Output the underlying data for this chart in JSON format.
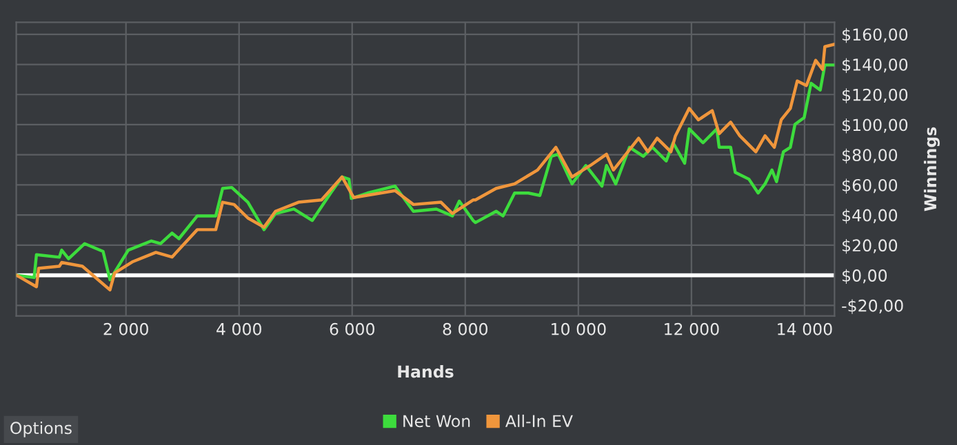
{
  "chart_data": {
    "type": "line",
    "xlabel": "Hands",
    "ylabel": "Winnings",
    "xlim": [
      60,
      14530
    ],
    "ylim": [
      -27,
      168
    ],
    "xticks": [
      {
        "value": 2000,
        "label": "2 000"
      },
      {
        "value": 4000,
        "label": "4 000"
      },
      {
        "value": 6000,
        "label": "6 000"
      },
      {
        "value": 8000,
        "label": "8 000"
      },
      {
        "value": 10000,
        "label": "10 000"
      },
      {
        "value": 12000,
        "label": "12 000"
      },
      {
        "value": 14000,
        "label": "14 000"
      }
    ],
    "yticks": [
      {
        "value": -20,
        "label": "-$20,00"
      },
      {
        "value": 0,
        "label": "$0,00"
      },
      {
        "value": 20,
        "label": "$20,00"
      },
      {
        "value": 40,
        "label": "$40,00"
      },
      {
        "value": 60,
        "label": "$60,00"
      },
      {
        "value": 80,
        "label": "$80,00"
      },
      {
        "value": 100,
        "label": "$100,00"
      },
      {
        "value": 120,
        "label": "$120,00"
      },
      {
        "value": 140,
        "label": "$140,00"
      },
      {
        "value": 160,
        "label": "$160,00"
      }
    ],
    "grid": true,
    "legend": "bottom",
    "ref_lines": [
      {
        "axis": "y",
        "value": 0,
        "color": "#ffffff"
      }
    ],
    "annotations": [
      "Options"
    ],
    "series": [
      {
        "name": "Net Won",
        "color": "#3ddc3d",
        "x": [
          66,
          376,
          417,
          822,
          863,
          985,
          1270,
          1595,
          1717,
          2041,
          2449,
          2612,
          2815,
          2937,
          3261,
          3588,
          3709,
          3871,
          4156,
          4441,
          4644,
          4969,
          5295,
          5620,
          5822,
          5944,
          5985,
          6271,
          6759,
          7083,
          7490,
          7773,
          7895,
          8139,
          8180,
          8546,
          8668,
          8873,
          9115,
          9320,
          9522,
          9644,
          9888,
          10132,
          10417,
          10498,
          10661,
          10905,
          11149,
          11310,
          11554,
          11676,
          11880,
          11961,
          12205,
          12449,
          12490,
          12693,
          12775,
          13017,
          13180,
          13302,
          13424,
          13505,
          13627,
          13749,
          13831,
          13993,
          14115,
          14278,
          14359,
          14522
        ],
        "values": [
          0,
          -1.5,
          13.7,
          12,
          16.7,
          11,
          21,
          15.8,
          -3,
          16.7,
          22.8,
          21,
          28,
          24.3,
          39.4,
          39.4,
          57.7,
          58.3,
          48.5,
          30.3,
          41,
          44,
          36.4,
          54.6,
          65.3,
          63.8,
          51,
          54.6,
          59.2,
          42.5,
          44,
          39.4,
          49.2,
          36.4,
          35,
          42.5,
          39.4,
          54.6,
          54.6,
          53,
          79,
          80.4,
          60.7,
          72.9,
          59.2,
          72.9,
          60.7,
          85,
          79,
          85,
          75.9,
          88,
          74.4,
          97.2,
          88,
          97.2,
          85,
          85,
          68.3,
          63.8,
          54.6,
          60.7,
          69.9,
          62.2,
          82,
          85,
          100.2,
          104.7,
          127.5,
          123,
          139.6,
          139.6
        ]
      },
      {
        "name": "All-In EV",
        "color": "#f0963c",
        "x": [
          66,
          417,
          456,
          822,
          863,
          1229,
          1717,
          1798,
          2124,
          2529,
          2815,
          3261,
          3588,
          3709,
          3912,
          4156,
          4441,
          4644,
          5051,
          5458,
          5822,
          6027,
          6759,
          7083,
          7571,
          7773,
          8139,
          8180,
          8546,
          8873,
          9278,
          9602,
          9888,
          10212,
          10498,
          10620,
          11066,
          11229,
          11393,
          11637,
          11717,
          11961,
          12124,
          12368,
          12490,
          12693,
          12856,
          13139,
          13302,
          13466,
          13588,
          13749,
          13871,
          14034,
          14197,
          14319,
          14359,
          14522
        ],
        "values": [
          0,
          -7.6,
          4.6,
          6,
          8.5,
          6,
          -9.7,
          1.5,
          9.1,
          15.2,
          12.1,
          30.3,
          30.3,
          48.5,
          47,
          38,
          31.9,
          42.5,
          48.5,
          50,
          65.3,
          51.6,
          56.2,
          47,
          48.5,
          41,
          50,
          50,
          57.7,
          60.7,
          69.9,
          85,
          65.3,
          72.9,
          80.4,
          69.9,
          91,
          82,
          91,
          82,
          92.6,
          110.8,
          103.2,
          109.3,
          94,
          101.7,
          92.6,
          82,
          92.6,
          85,
          103.2,
          110.8,
          129,
          126,
          142.7,
          136.6,
          151.8,
          153.3
        ]
      }
    ]
  }
}
